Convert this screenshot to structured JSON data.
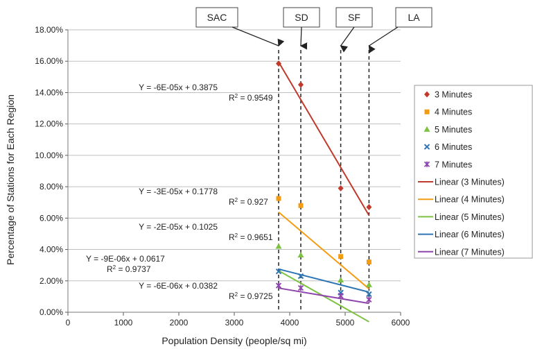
{
  "chart_data": {
    "type": "scatter",
    "xlabel": "Population Density (people/sq mi)",
    "ylabel": "Percentage of Stations for Each Region",
    "xlim": [
      0,
      6000
    ],
    "ylim": [
      0,
      0.18
    ],
    "x_ticks": [
      "0",
      "1000",
      "2000",
      "3000",
      "4000",
      "5000",
      "6000"
    ],
    "y_ticks": [
      "0.00%",
      "2.00%",
      "4.00%",
      "6.00%",
      "8.00%",
      "10.00%",
      "12.00%",
      "14.00%",
      "16.00%",
      "18.00%"
    ],
    "grid": "horizontal",
    "legend_position": "right",
    "regions": [
      {
        "label": "SAC",
        "x": 3800
      },
      {
        "label": "SD",
        "x": 4200
      },
      {
        "label": "SF",
        "x": 4920
      },
      {
        "label": "LA",
        "x": 5430
      }
    ],
    "series": [
      {
        "name": "3 Minutes",
        "marker": "diamond",
        "color": "#c0392b",
        "x": [
          3800,
          4200,
          4920,
          5430
        ],
        "y": [
          0.1585,
          0.145,
          0.079,
          0.067
        ],
        "trend": {
          "name": "Linear (3 Minutes)",
          "slope": -6e-05,
          "intercept": 0.3875,
          "equation": "Y = -6E-05x + 0.3875",
          "r2_prefix": "R",
          "r2_sup": "2",
          "r2_value": " = 0.9549"
        }
      },
      {
        "name": "4 Minutes",
        "marker": "square",
        "color": "#f39c12",
        "x": [
          3800,
          4200,
          4920,
          5430
        ],
        "y": [
          0.0725,
          0.068,
          0.0355,
          0.032
        ],
        "trend": {
          "name": "Linear (4 Minutes)",
          "slope": -3e-05,
          "intercept": 0.1778,
          "equation": "Y = -3E-05x + 0.1778",
          "r2_prefix": "R",
          "r2_sup": "2",
          "r2_value": " = 0.927"
        }
      },
      {
        "name": "5 Minutes",
        "marker": "triangle",
        "color": "#7dc242",
        "x": [
          3800,
          4200,
          4920,
          5430
        ],
        "y": [
          0.042,
          0.0365,
          0.0205,
          0.0175
        ],
        "trend": {
          "name": "Linear (5 Minutes)",
          "slope": -2e-05,
          "intercept": 0.1025,
          "equation": "Y = -2E-05x + 0.1025",
          "r2_prefix": "R",
          "r2_sup": "2",
          "r2_value": " = 0.9651"
        }
      },
      {
        "name": "6 Minutes",
        "marker": "x",
        "color": "#2e75b6",
        "x": [
          3800,
          4200,
          4920,
          5430
        ],
        "y": [
          0.026,
          0.023,
          0.0125,
          0.0115
        ],
        "trend": {
          "name": "Linear (6 Minutes)",
          "slope": -9e-06,
          "intercept": 0.0617,
          "equation": "Y = -9E-06x + 0.0617",
          "r2_prefix": "R",
          "r2_sup": "2",
          "r2_value": " = 0.9737"
        }
      },
      {
        "name": "7 Minutes",
        "marker": "star",
        "color": "#8e44ad",
        "x": [
          3800,
          4200,
          4920,
          5430
        ],
        "y": [
          0.017,
          0.0155,
          0.0105,
          0.008
        ],
        "trend": {
          "name": "Linear (7 Minutes)",
          "slope": -6e-06,
          "intercept": 0.0382,
          "equation": "Y = -6E-06x + 0.0382",
          "r2_prefix": "R",
          "r2_sup": "2",
          "r2_value": " = 0.9725"
        }
      }
    ]
  }
}
